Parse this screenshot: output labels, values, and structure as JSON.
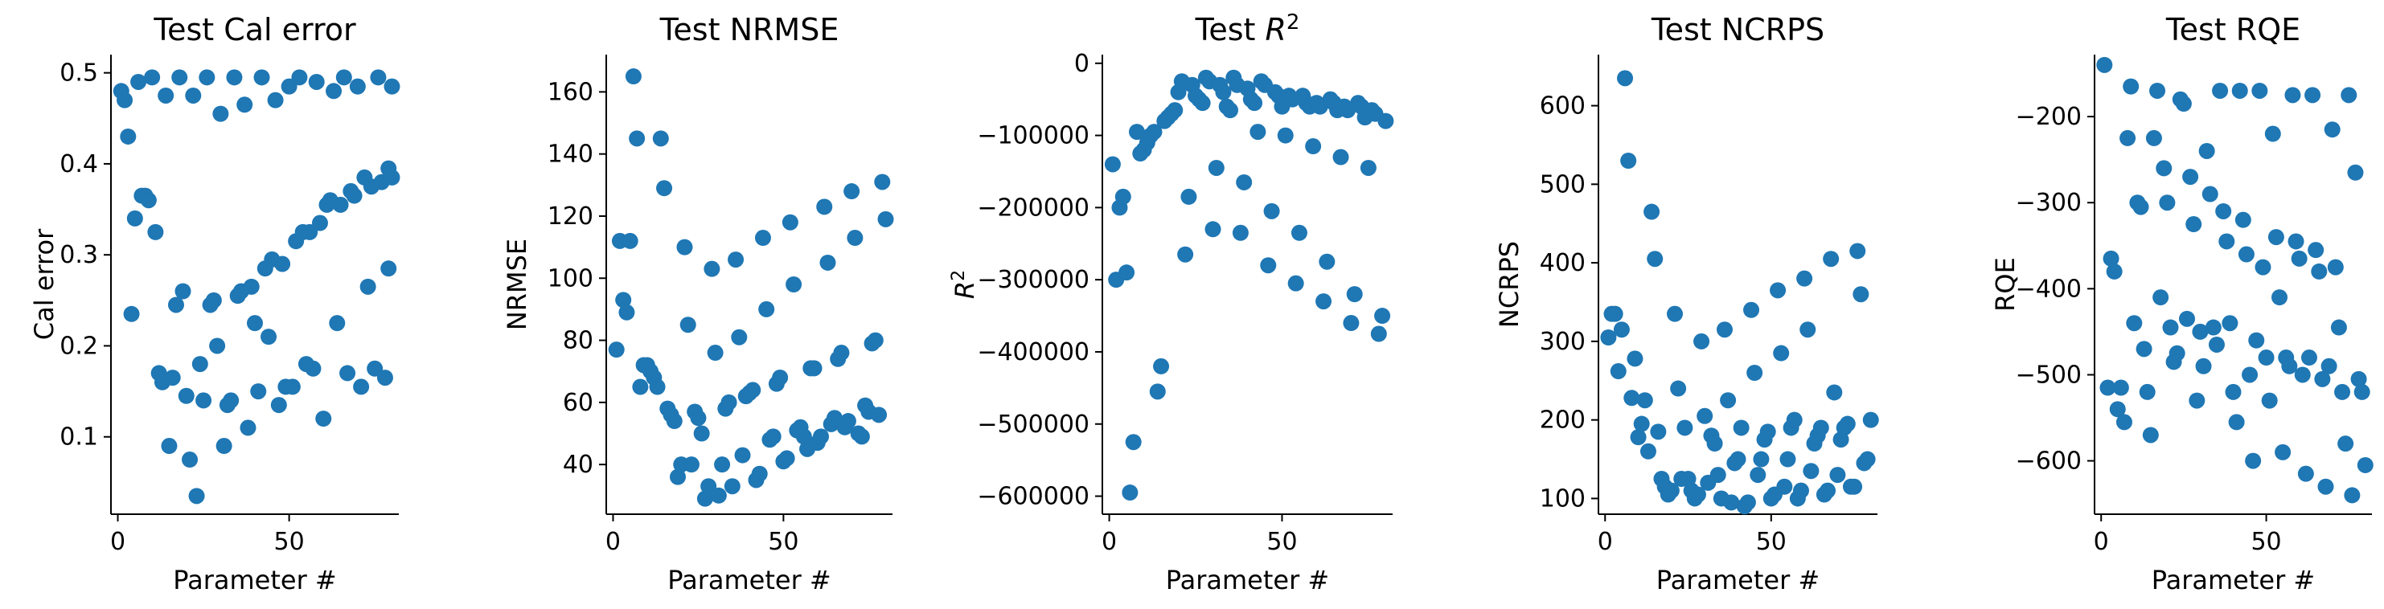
{
  "figure": {
    "marker_color": "#1f77b4"
  },
  "chart_data": [
    {
      "type": "scatter",
      "title": "Test Cal error",
      "xlabel": "Parameter #",
      "ylabel": "Cal error",
      "xlim": [
        -2,
        82
      ],
      "ylim": [
        0.015,
        0.52
      ],
      "xticks": [
        0,
        50
      ],
      "yticks": [
        0.1,
        0.2,
        0.3,
        0.4,
        0.5
      ],
      "ytick_labels": [
        "0.1",
        "0.2",
        "0.3",
        "0.4",
        "0.5"
      ],
      "grid": false,
      "x": [
        1,
        2,
        3,
        4,
        5,
        6,
        7,
        8,
        9,
        10,
        11,
        12,
        13,
        14,
        15,
        16,
        17,
        18,
        19,
        20,
        21,
        22,
        23,
        24,
        25,
        26,
        27,
        28,
        29,
        30,
        31,
        32,
        33,
        34,
        35,
        36,
        37,
        38,
        39,
        40,
        41,
        42,
        43,
        44,
        45,
        46,
        47,
        48,
        49,
        50,
        51,
        52,
        53,
        54,
        55,
        56,
        57,
        58,
        59,
        60,
        61,
        62,
        63,
        64,
        65,
        66,
        67,
        68,
        69,
        70,
        71,
        72,
        73,
        74,
        75,
        76,
        77,
        78,
        79,
        80
      ],
      "y": [
        0.48,
        0.47,
        0.43,
        0.235,
        0.34,
        0.49,
        0.365,
        0.365,
        0.36,
        0.495,
        0.325,
        0.17,
        0.16,
        0.475,
        0.09,
        0.165,
        0.245,
        0.495,
        0.26,
        0.145,
        0.075,
        0.475,
        0.035,
        0.18,
        0.14,
        0.495,
        0.245,
        0.25,
        0.2,
        0.455,
        0.09,
        0.135,
        0.14,
        0.495,
        0.255,
        0.26,
        0.465,
        0.11,
        0.265,
        0.225,
        0.15,
        0.495,
        0.285,
        0.21,
        0.295,
        0.47,
        0.135,
        0.29,
        0.155,
        0.485,
        0.155,
        0.315,
        0.495,
        0.325,
        0.18,
        0.325,
        0.175,
        0.49,
        0.335,
        0.12,
        0.355,
        0.36,
        0.48,
        0.225,
        0.355,
        0.495,
        0.17,
        0.37,
        0.365,
        0.485,
        0.155,
        0.385,
        0.265,
        0.375,
        0.175,
        0.495,
        0.38,
        0.165,
        0.395,
        0.485
      ],
      "y2": [
        null,
        null,
        null,
        null,
        null,
        null,
        null,
        null,
        null,
        null,
        null,
        null,
        null,
        null,
        null,
        null,
        null,
        null,
        null,
        null,
        null,
        null,
        null,
        null,
        null,
        null,
        null,
        null,
        null,
        null,
        null,
        null,
        null,
        null,
        null,
        null,
        null,
        null,
        null,
        null,
        null,
        null,
        null,
        null,
        null,
        null,
        null,
        null,
        null,
        null,
        null,
        null,
        null,
        null,
        null,
        null,
        null,
        null,
        null,
        null,
        null,
        null,
        null,
        null,
        null,
        null,
        null,
        null,
        null,
        null,
        null,
        null,
        null,
        null,
        null,
        null,
        null,
        null,
        0.285,
        0.385
      ]
    },
    {
      "type": "scatter",
      "title": "Test NRMSE",
      "xlabel": "Parameter #",
      "ylabel": "NRMSE",
      "xlim": [
        -2,
        82
      ],
      "ylim": [
        24,
        172
      ],
      "xticks": [
        0,
        50
      ],
      "yticks": [
        40,
        60,
        80,
        100,
        120,
        140,
        160
      ],
      "ytick_labels": [
        "40",
        "60",
        "80",
        "100",
        "120",
        "140",
        "160"
      ],
      "grid": false,
      "x": [
        1,
        2,
        3,
        4,
        5,
        6,
        7,
        8,
        9,
        10,
        11,
        12,
        13,
        14,
        15,
        16,
        17,
        18,
        19,
        20,
        21,
        22,
        23,
        24,
        25,
        26,
        27,
        28,
        29,
        30,
        31,
        32,
        33,
        34,
        35,
        36,
        37,
        38,
        39,
        40,
        41,
        42,
        43,
        44,
        45,
        46,
        47,
        48,
        49,
        50,
        51,
        52,
        53,
        54,
        55,
        56,
        57,
        58,
        59,
        60,
        61,
        62,
        63,
        64,
        65,
        66,
        67,
        68,
        69,
        70,
        71,
        72,
        73,
        74,
        75,
        76,
        77,
        78,
        79,
        80
      ],
      "y": [
        77,
        112,
        93,
        89,
        112,
        165,
        145,
        65,
        72,
        72,
        70,
        68,
        65,
        145,
        129,
        58,
        56,
        54,
        36,
        40,
        110,
        85,
        40,
        57,
        55,
        50,
        29,
        33,
        103,
        76,
        30,
        40,
        58,
        60,
        33,
        106,
        81,
        43,
        62,
        63,
        64,
        35,
        37,
        113,
        90,
        48,
        49,
        66,
        68,
        41,
        42,
        118,
        98,
        51,
        52,
        49,
        45,
        71,
        71,
        47,
        49,
        123,
        105,
        53,
        55,
        74,
        76,
        52,
        54,
        128,
        113,
        50,
        49,
        59,
        57,
        79,
        80,
        56,
        131,
        119
      ]
    },
    {
      "type": "scatter",
      "title": "Test R²",
      "title_main": "Test ",
      "title_italic": "R",
      "title_sup": "2",
      "xlabel": "Parameter #",
      "ylabel": "R²",
      "ylabel_italic": "R",
      "ylabel_sup": "2",
      "xlim": [
        -2,
        82
      ],
      "ylim": [
        -625000,
        12000
      ],
      "xticks": [
        0,
        50
      ],
      "yticks": [
        0,
        -100000,
        -200000,
        -300000,
        -400000,
        -500000,
        -600000
      ],
      "ytick_labels": [
        "0",
        "−100000",
        "−200000",
        "−300000",
        "−400000",
        "−500000",
        "−600000"
      ],
      "grid": false,
      "x": [
        1,
        2,
        3,
        4,
        5,
        6,
        7,
        8,
        9,
        10,
        11,
        12,
        13,
        14,
        15,
        16,
        17,
        18,
        19,
        20,
        21,
        22,
        23,
        24,
        25,
        26,
        27,
        28,
        29,
        30,
        31,
        32,
        33,
        34,
        35,
        36,
        37,
        38,
        39,
        40,
        41,
        42,
        43,
        44,
        45,
        46,
        47,
        48,
        49,
        50,
        51,
        52,
        53,
        54,
        55,
        56,
        57,
        58,
        59,
        60,
        61,
        62,
        63,
        64,
        65,
        66,
        67,
        68,
        69,
        70,
        71,
        72,
        73,
        74,
        75,
        76,
        77,
        78,
        79,
        80
      ],
      "y": [
        -140000,
        -300000,
        -200000,
        -185000,
        -290000,
        -595000,
        -525000,
        -95000,
        -125000,
        -120000,
        -110000,
        -100000,
        -95000,
        -455000,
        -420000,
        -80000,
        -75000,
        -70000,
        -65000,
        -40000,
        -25000,
        -265000,
        -185000,
        -30000,
        -45000,
        -50000,
        -55000,
        -20000,
        -25000,
        -230000,
        -145000,
        -30000,
        -40000,
        -60000,
        -65000,
        -20000,
        -30000,
        -235000,
        -165000,
        -35000,
        -50000,
        -55000,
        -95000,
        -25000,
        -30000,
        -280000,
        -205000,
        -40000,
        -45000,
        -60000,
        -100000,
        -45000,
        -50000,
        -305000,
        -235000,
        -45000,
        -55000,
        -60000,
        -115000,
        -55000,
        -60000,
        -330000,
        -275000,
        -50000,
        -55000,
        -65000,
        -130000,
        -60000,
        -65000,
        -360000,
        -320000,
        -55000,
        -60000,
        -75000,
        -145000,
        -65000,
        -70000,
        -375000,
        -350000,
        -80000
      ]
    },
    {
      "type": "scatter",
      "title": "Test NCRPS",
      "xlabel": "Parameter #",
      "ylabel": "NCRPS",
      "xlim": [
        -2,
        82
      ],
      "ylim": [
        80,
        665
      ],
      "xticks": [
        0,
        50
      ],
      "yticks": [
        100,
        200,
        300,
        400,
        500,
        600
      ],
      "ytick_labels": [
        "100",
        "200",
        "300",
        "400",
        "500",
        "600"
      ],
      "grid": false,
      "x": [
        1,
        2,
        3,
        4,
        5,
        6,
        7,
        8,
        9,
        10,
        11,
        12,
        13,
        14,
        15,
        16,
        17,
        18,
        19,
        20,
        21,
        22,
        23,
        24,
        25,
        26,
        27,
        28,
        29,
        30,
        31,
        32,
        33,
        34,
        35,
        36,
        37,
        38,
        39,
        40,
        41,
        42,
        43,
        44,
        45,
        46,
        47,
        48,
        49,
        50,
        51,
        52,
        53,
        54,
        55,
        56,
        57,
        58,
        59,
        60,
        61,
        62,
        63,
        64,
        65,
        66,
        67,
        68,
        69,
        70,
        71,
        72,
        73,
        74,
        75,
        76,
        77,
        78,
        79,
        80
      ],
      "y": [
        305,
        335,
        335,
        262,
        315,
        635,
        530,
        228,
        278,
        178,
        195,
        225,
        160,
        465,
        405,
        185,
        125,
        115,
        105,
        110,
        335,
        240,
        125,
        190,
        125,
        110,
        100,
        105,
        300,
        205,
        120,
        180,
        170,
        130,
        100,
        315,
        225,
        95,
        145,
        150,
        190,
        90,
        95,
        340,
        260,
        130,
        150,
        175,
        185,
        100,
        105,
        365,
        285,
        115,
        150,
        190,
        200,
        100,
        110,
        380,
        315,
        135,
        170,
        180,
        190,
        105,
        110,
        405,
        235,
        130,
        175,
        190,
        195,
        115,
        115,
        415,
        360,
        145,
        150,
        200
      ]
    },
    {
      "type": "scatter",
      "title": "Test RQE",
      "xlabel": "Parameter #",
      "ylabel": "RQE",
      "xlim": [
        -2,
        82
      ],
      "ylim": [
        -662,
        -128
      ],
      "xticks": [
        0,
        50
      ],
      "yticks": [
        -200,
        -300,
        -400,
        -500,
        -600
      ],
      "ytick_labels": [
        "−200",
        "−300",
        "−400",
        "−500",
        "−600"
      ],
      "grid": false,
      "x": [
        1,
        2,
        3,
        4,
        5,
        6,
        7,
        8,
        9,
        10,
        11,
        12,
        13,
        14,
        15,
        16,
        17,
        18,
        19,
        20,
        21,
        22,
        23,
        24,
        25,
        26,
        27,
        28,
        29,
        30,
        31,
        32,
        33,
        34,
        35,
        36,
        37,
        38,
        39,
        40,
        41,
        42,
        43,
        44,
        45,
        46,
        47,
        48,
        49,
        50,
        51,
        52,
        53,
        54,
        55,
        56,
        57,
        58,
        59,
        60,
        61,
        62,
        63,
        64,
        65,
        66,
        67,
        68,
        69,
        70,
        71,
        72,
        73,
        74,
        75,
        76,
        77,
        78,
        79,
        80
      ],
      "y": [
        -140,
        -515,
        -365,
        -380,
        -540,
        -515,
        -555,
        -225,
        -165,
        -440,
        -300,
        -305,
        -470,
        -520,
        -570,
        -225,
        -170,
        -410,
        -260,
        -300,
        -445,
        -485,
        -475,
        -180,
        -185,
        -435,
        -270,
        -325,
        -530,
        -450,
        -490,
        -240,
        -290,
        -445,
        -465,
        -170,
        -310,
        -345,
        -440,
        -520,
        -555,
        -170,
        -320,
        -360,
        -500,
        -600,
        -460,
        -170,
        -375,
        -480,
        -530,
        -220,
        -340,
        -410,
        -590,
        -480,
        -490,
        -175,
        -345,
        -365,
        -500,
        -615,
        -480,
        -175,
        -355,
        -380,
        -505,
        -630,
        -490,
        -215,
        -375,
        -445,
        -520,
        -580,
        -175,
        -640,
        -265,
        -505,
        -520,
        -605
      ]
    }
  ]
}
